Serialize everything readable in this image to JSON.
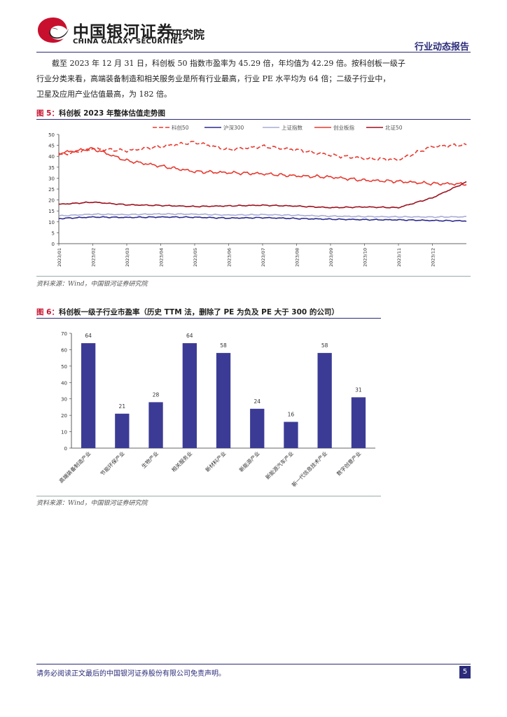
{
  "header": {
    "logo_cn": "中国银河证券",
    "logo_en": "CHINA GALAXY SECURITIES",
    "institute": "研究院",
    "report_type": "行业动态报告",
    "brand_red": "#c8102e",
    "brand_blue": "#2b2b7a"
  },
  "body": {
    "paragraph_lines": [
      "截至 2023 年 12 月 31 日，科创板 50 指数市盈率为 45.29 倍，年均值为 42.29 倍。按科创板一级子",
      "行业分类来看，高端装备制造和相关服务业是所有行业最高，行业 PE 水平均为 64 倍；二级子行业中，",
      "卫星及应用产业估值最高，为 182 倍。"
    ]
  },
  "figure5": {
    "label": "图 5：",
    "title": "科创板 2023 年整体估值走势图",
    "source": "资料来源：Wind，中国银河证券研究院"
  },
  "figure6": {
    "label": "图 6：",
    "title": "科创板一级子行业市盈率（历史 TTM 法，删除了 PE 为负及 PE 大于 300 的公司）",
    "source": "资料来源：Wind，中国银河证券研究院"
  },
  "chart_data": [
    {
      "type": "line",
      "title": "科创板 2023 年整体估值走势图",
      "ylim": [
        0,
        50
      ],
      "yticks": [
        0,
        5,
        10,
        15,
        20,
        25,
        30,
        35,
        40,
        45,
        50
      ],
      "x_tick_labels": [
        "2023/01",
        "2023/02",
        "2023/03",
        "2023/04",
        "2023/05",
        "2023/06",
        "2023/07",
        "2023/08",
        "2023/09",
        "2023/10",
        "2023/11",
        "2023/12"
      ],
      "legend_position": "top",
      "series": [
        {
          "name": "科创50",
          "color": "#e8392f",
          "dash": "6,3",
          "values": [
            40.5,
            43.5,
            42.5,
            44.5,
            46.5,
            43.0,
            44.5,
            43.0,
            40.5,
            39.0,
            38.5,
            44.5,
            45.29
          ]
        },
        {
          "name": "沪深300",
          "color": "#2b2b8c",
          "dash": "",
          "values": [
            11.5,
            12.2,
            12.0,
            12.2,
            12.1,
            11.7,
            11.9,
            11.5,
            11.2,
            11.0,
            10.9,
            10.6,
            10.4
          ]
        },
        {
          "name": "上证指数",
          "color": "#a9abd6",
          "dash": "",
          "values": [
            12.7,
            13.5,
            13.3,
            13.6,
            13.5,
            13.1,
            13.3,
            13.0,
            12.6,
            12.4,
            12.3,
            12.2,
            12.3
          ]
        },
        {
          "name": "创业板指",
          "color": "#e8392f",
          "dash": "",
          "values": [
            41.5,
            43.5,
            38.0,
            35.5,
            33.0,
            32.5,
            32.0,
            31.0,
            30.5,
            29.0,
            28.5,
            27.5,
            27.3
          ]
        },
        {
          "name": "北证50",
          "color": "#9b111e",
          "dash": "",
          "values": [
            18.0,
            19.0,
            17.8,
            17.5,
            17.0,
            17.3,
            17.6,
            17.2,
            16.5,
            16.8,
            16.5,
            21.0,
            28.2
          ]
        }
      ]
    },
    {
      "type": "bar",
      "title": "科创板一级子行业市盈率（历史 TTM 法，删除了 PE 为负及 PE 大于 300 的公司）",
      "categories": [
        "高端装备制造产业",
        "节能环保产业",
        "生物产业",
        "相关服务业",
        "新材料产业",
        "新能源产业",
        "新能源汽车产业",
        "新一代信息技术产业",
        "数字创意产业"
      ],
      "values": [
        64,
        21,
        28,
        64,
        58,
        24,
        16,
        58,
        31
      ],
      "ylim": [
        0,
        70
      ],
      "yticks": [
        0,
        10,
        20,
        30,
        40,
        50,
        60,
        70
      ],
      "bar_color": "#3b3b96"
    }
  ],
  "footer": {
    "disclaimer": "请务必阅读正文最后的中国银河证券股份有限公司免责声明。",
    "page_number": "5"
  }
}
